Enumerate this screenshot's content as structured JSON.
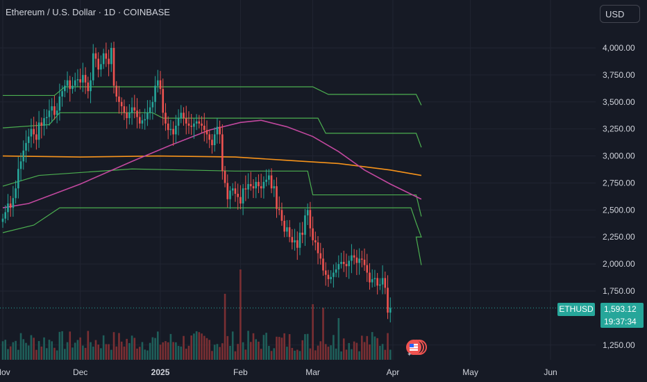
{
  "header": {
    "title": "Ethereum / U.S. Dollar · 1D · COINBASE",
    "currency_button": "USD"
  },
  "price_label": {
    "symbol": "ETHUSD",
    "price": "1,593.12",
    "countdown": "19:37:34"
  },
  "colors": {
    "background": "#161a25",
    "up": "#26a69a",
    "down": "#ef5350",
    "ma_orange": "#f7931a",
    "ma_magenta": "#c2489f",
    "channel_green": "#4caf50"
  },
  "chart_data": {
    "type": "candlestick",
    "title": "Ethereum / U.S. Dollar · 1D · COINBASE",
    "y_ticks": [
      "4,000.00",
      "3,750.00",
      "3,500.00",
      "3,250.00",
      "3,000.00",
      "2,750.00",
      "2,500.00",
      "2,250.00",
      "2,000.00",
      "1,750.00",
      "1,250.00"
    ],
    "y_tick_values": [
      4000,
      3750,
      3500,
      3250,
      3000,
      2750,
      2500,
      2250,
      2000,
      1750,
      1250
    ],
    "x_ticks": [
      {
        "label": "Nov",
        "day": 0,
        "bold": false
      },
      {
        "label": "Dec",
        "day": 30,
        "bold": false
      },
      {
        "label": "2025",
        "day": 61,
        "bold": true
      },
      {
        "label": "Feb",
        "day": 92,
        "bold": false
      },
      {
        "label": "Mar",
        "day": 120,
        "bold": false
      },
      {
        "label": "Apr",
        "day": 151,
        "bold": false
      },
      {
        "label": "May",
        "day": 181,
        "bold": false
      },
      {
        "label": "Jun",
        "day": 212,
        "bold": false
      }
    ],
    "ylim": [
      1150,
      4200
    ],
    "grid": true,
    "last_price": 1593.12,
    "closes": [
      2420,
      2480,
      2560,
      2520,
      2610,
      2700,
      2880,
      2950,
      3050,
      3120,
      3180,
      3250,
      3200,
      3150,
      3310,
      3280,
      3350,
      3360,
      3420,
      3460,
      3380,
      3420,
      3550,
      3600,
      3650,
      3700,
      3620,
      3650,
      3700,
      3710,
      3680,
      3750,
      3680,
      3600,
      3700,
      3950,
      3900,
      3800,
      3850,
      3950,
      3900,
      3850,
      4000,
      3650,
      3550,
      3500,
      3460,
      3400,
      3350,
      3400,
      3450,
      3420,
      3360,
      3300,
      3330,
      3340,
      3400,
      3450,
      3500,
      3650,
      3700,
      3620,
      3400,
      3300,
      3240,
      3250,
      3200,
      3280,
      3350,
      3400,
      3350,
      3300,
      3280,
      3270,
      3300,
      3320,
      3300,
      3280,
      3240,
      3200,
      3150,
      3100,
      3200,
      3270,
      3200,
      2860,
      2750,
      2600,
      2680,
      2700,
      2650,
      2620,
      2560,
      2700,
      2690,
      2740,
      2720,
      2700,
      2760,
      2720,
      2700,
      2760,
      2780,
      2820,
      2700,
      2720,
      2510,
      2500,
      2400,
      2300,
      2340,
      2250,
      2200,
      2220,
      2150,
      2290,
      2270,
      2450,
      2500,
      2330,
      2220,
      2200,
      2100,
      2050,
      1940,
      1900,
      1860,
      1880,
      1920,
      1950,
      2000,
      2020,
      2000,
      1980,
      2030,
      2080,
      2060,
      2010,
      2050,
      2040,
      1990,
      1920,
      1830,
      1860,
      1870,
      1800,
      1810,
      1870,
      1780,
      1550,
      1593
    ],
    "ma_orange": [
      [
        0,
        3000
      ],
      [
        30,
        2990
      ],
      [
        60,
        3000
      ],
      [
        90,
        2990
      ],
      [
        110,
        2960
      ],
      [
        130,
        2930
      ],
      [
        150,
        2870
      ],
      [
        162,
        2820
      ]
    ],
    "ma_magenta": [
      [
        0,
        2520
      ],
      [
        10,
        2560
      ],
      [
        30,
        2740
      ],
      [
        50,
        2950
      ],
      [
        65,
        3100
      ],
      [
        80,
        3240
      ],
      [
        92,
        3310
      ],
      [
        100,
        3330
      ],
      [
        110,
        3270
      ],
      [
        120,
        3180
      ],
      [
        130,
        3040
      ],
      [
        140,
        2870
      ],
      [
        150,
        2740
      ],
      [
        162,
        2600
      ]
    ],
    "channels": [
      [
        [
          0,
          3560
        ],
        [
          20,
          3560
        ],
        [
          24,
          3640
        ],
        [
          120,
          3640
        ],
        [
          126,
          3570
        ],
        [
          160,
          3570
        ],
        [
          162,
          3470
        ]
      ],
      [
        [
          0,
          3260
        ],
        [
          18,
          3290
        ],
        [
          22,
          3400
        ],
        [
          58,
          3400
        ],
        [
          62,
          3350
        ],
        [
          122,
          3350
        ],
        [
          125,
          3210
        ],
        [
          160,
          3210
        ],
        [
          162,
          3080
        ]
      ],
      [
        [
          0,
          2720
        ],
        [
          14,
          2820
        ],
        [
          50,
          2880
        ],
        [
          90,
          2860
        ],
        [
          95,
          2860
        ],
        [
          118,
          2860
        ],
        [
          120,
          2640
        ],
        [
          160,
          2640
        ],
        [
          162,
          2440
        ]
      ],
      [
        [
          0,
          2290
        ],
        [
          12,
          2360
        ],
        [
          22,
          2520
        ],
        [
          150,
          2520
        ],
        [
          158,
          2520
        ],
        [
          160,
          2380
        ],
        [
          162,
          2250
        ],
        [
          160,
          2250
        ],
        [
          162,
          1990
        ]
      ]
    ],
    "volume_max": 1.0
  }
}
